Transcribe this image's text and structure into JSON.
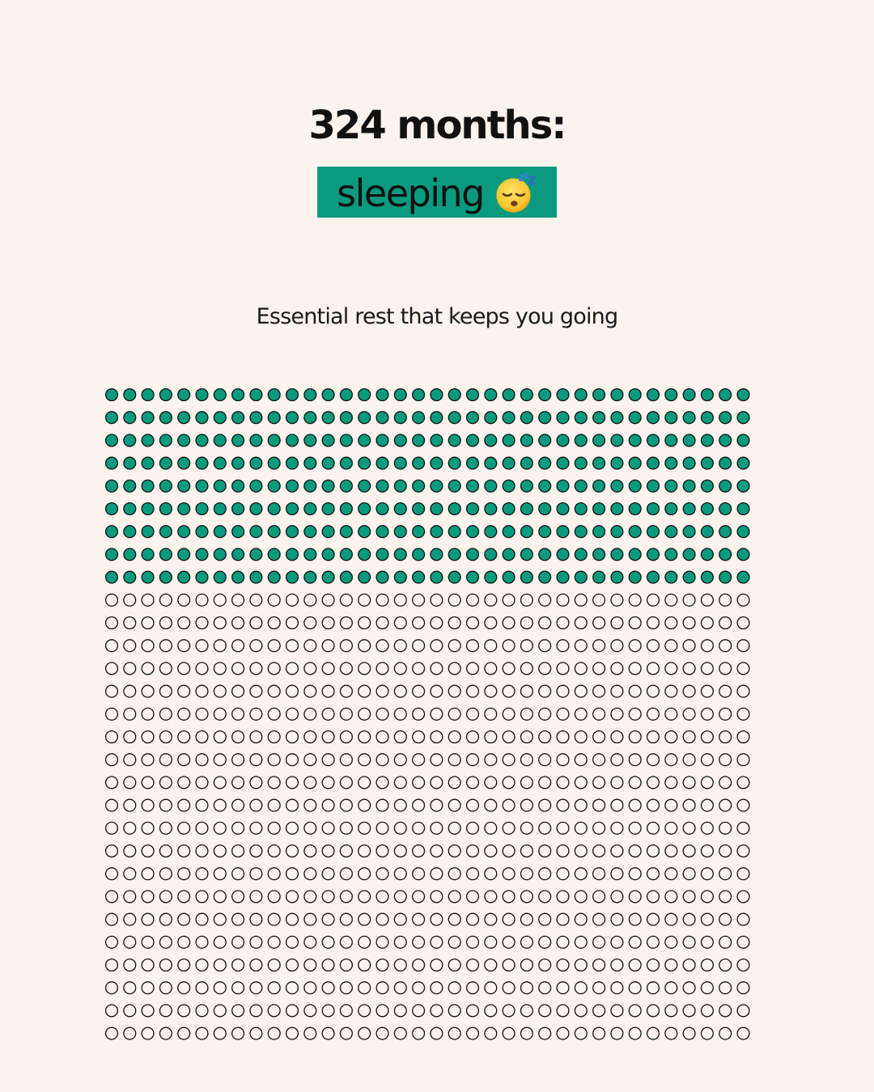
{
  "header": {
    "title": "324 months:",
    "highlight_label": "sleeping",
    "highlight_icon": "sleeping-face-emoji",
    "subtitle": "Essential rest that keeps you going"
  },
  "colors": {
    "background": "#fdf3ee",
    "accent": "#0a9a7e",
    "dot_outline": "#111111",
    "text": "#111111"
  },
  "chart_data": {
    "type": "waffle",
    "unit": "month",
    "filled_value": 324,
    "total_value": 1044,
    "columns": 36,
    "rows": 29,
    "filled_color": "#0a9a7e",
    "empty_color": "#fdf3ee"
  }
}
